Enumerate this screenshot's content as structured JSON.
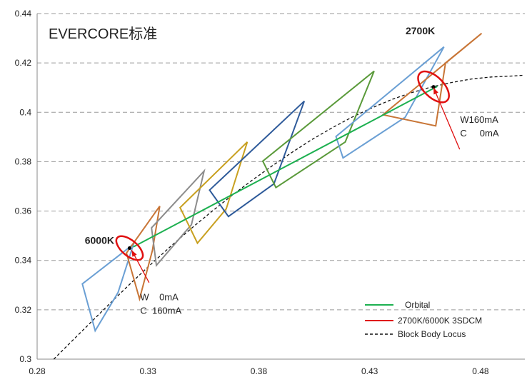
{
  "chart_data": {
    "type": "scatter",
    "title": "EVERCORE标准",
    "xlim": [
      0.28,
      0.5
    ],
    "ylim": [
      0.3,
      0.44
    ],
    "xticks": [
      0.28,
      0.33,
      0.38,
      0.43,
      0.48
    ],
    "yticks": [
      0.3,
      0.32,
      0.34,
      0.36,
      0.38,
      0.4,
      0.42,
      0.44
    ],
    "grid": "horizontal dashed",
    "legend": {
      "position": "bottom-right",
      "entries": [
        {
          "label": "Orbital",
          "color": "#1DB050",
          "style": "solid"
        },
        {
          "label": "2700K/6000K 3SDCM",
          "color": "#E01010",
          "style": "solid"
        },
        {
          "label": "Block Body Locus",
          "color": "#111111",
          "style": "dashed"
        }
      ]
    },
    "locus": {
      "x": [
        0.2875,
        0.296,
        0.305,
        0.314,
        0.323,
        0.332,
        0.341,
        0.35,
        0.359,
        0.368,
        0.377,
        0.386,
        0.395,
        0.404,
        0.413,
        0.422,
        0.431,
        0.44,
        0.449,
        0.458,
        0.467,
        0.476,
        0.485,
        0.494,
        0.4995
      ],
      "y": [
        0.3,
        0.3076,
        0.3156,
        0.3236,
        0.3314,
        0.339,
        0.3463,
        0.3533,
        0.36,
        0.3664,
        0.3725,
        0.3783,
        0.3838,
        0.389,
        0.3937,
        0.398,
        0.4018,
        0.4052,
        0.408,
        0.4103,
        0.4121,
        0.4135,
        0.4143,
        0.4147,
        0.415
      ]
    },
    "orbital": {
      "color": "#1DB050",
      "points": [
        [
          0.3234,
          0.3455
        ],
        [
          0.4605,
          0.4105
        ]
      ]
    },
    "quadrangles": [
      {
        "color": "#6A9FD4",
        "points": [
          [
            0.3004,
            0.3305
          ],
          [
            0.3235,
            0.3466
          ],
          [
            0.3165,
            0.327
          ],
          [
            0.3062,
            0.3115
          ]
        ]
      },
      {
        "color": "#C87536",
        "points": [
          [
            0.3203,
            0.343
          ],
          [
            0.3353,
            0.362
          ],
          [
            0.332,
            0.344
          ],
          [
            0.3262,
            0.3244
          ]
        ]
      },
      {
        "color": "#8C8C8C",
        "points": [
          [
            0.3316,
            0.3532
          ],
          [
            0.3553,
            0.3762
          ],
          [
            0.3496,
            0.3545
          ],
          [
            0.3338,
            0.338
          ]
        ]
      },
      {
        "color": "#C8A020",
        "points": [
          [
            0.3445,
            0.3614
          ],
          [
            0.3748,
            0.388
          ],
          [
            0.3653,
            0.3609
          ],
          [
            0.3523,
            0.347
          ]
        ]
      },
      {
        "color": "#2F5B9A",
        "points": [
          [
            0.3578,
            0.3685
          ],
          [
            0.4005,
            0.4045
          ],
          [
            0.3868,
            0.371
          ],
          [
            0.3663,
            0.3578
          ]
        ]
      },
      {
        "color": "#5A9A3A",
        "points": [
          [
            0.3818,
            0.3802
          ],
          [
            0.432,
            0.4167
          ],
          [
            0.419,
            0.388
          ],
          [
            0.3877,
            0.3695
          ]
        ]
      },
      {
        "color": "#6A9FD4",
        "points": [
          [
            0.4148,
            0.3902
          ],
          [
            0.4635,
            0.4265
          ],
          [
            0.446,
            0.398
          ],
          [
            0.418,
            0.3815
          ]
        ]
      },
      {
        "color": "#C87536",
        "points": [
          [
            0.436,
            0.399
          ],
          [
            0.4805,
            0.432
          ],
          [
            0.4642,
            0.42
          ],
          [
            0.4598,
            0.3945
          ]
        ]
      }
    ],
    "ellipses": [
      {
        "label": "6000K",
        "color": "#E01010",
        "center": [
          0.3217,
          0.345
        ],
        "rx": 0.0035,
        "ry": 0.0065,
        "angle": -50
      },
      {
        "label": "2700K",
        "color": "#E01010",
        "center": [
          0.4588,
          0.4103
        ],
        "rx": 0.0046,
        "ry": 0.0078,
        "angle": -45
      }
    ],
    "annotations": [
      {
        "text": "6000K",
        "x": 0.3015,
        "y": 0.3467
      },
      {
        "text": "2700K",
        "x": 0.4462,
        "y": 0.4316
      },
      {
        "text": "W    0mA",
        "x": 0.3265,
        "y": 0.3239
      },
      {
        "text": "C  160mA",
        "x": 0.3265,
        "y": 0.3183
      },
      {
        "text": "W160mA",
        "x": 0.4708,
        "y": 0.3958
      },
      {
        "text": "C     0mA",
        "x": 0.4708,
        "y": 0.3902
      }
    ],
    "arrows": [
      {
        "from": [
          0.3305,
          0.331
        ],
        "to": [
          0.3226,
          0.3442
        ]
      },
      {
        "from": [
          0.4706,
          0.385
        ],
        "to": [
          0.4588,
          0.41
        ]
      }
    ]
  }
}
